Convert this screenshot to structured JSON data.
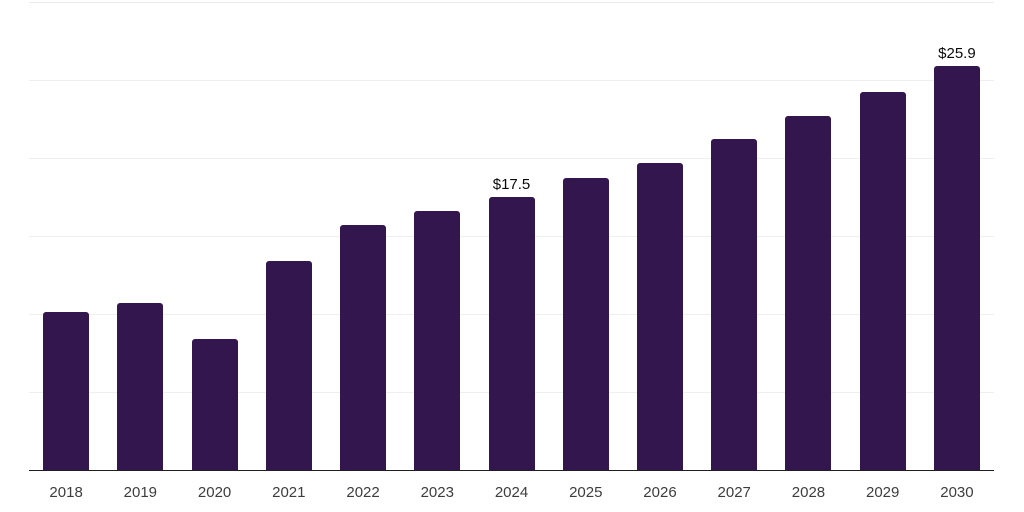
{
  "chart_data": {
    "type": "bar",
    "categories": [
      "2018",
      "2019",
      "2020",
      "2021",
      "2022",
      "2023",
      "2024",
      "2025",
      "2026",
      "2027",
      "2028",
      "2029",
      "2030"
    ],
    "values": [
      10.1,
      10.7,
      8.4,
      13.4,
      15.7,
      16.6,
      17.5,
      18.7,
      19.7,
      21.2,
      22.7,
      24.2,
      25.9
    ],
    "data_labels": [
      "",
      "",
      "",
      "",
      "",
      "",
      "$17.5",
      "",
      "",
      "",
      "",
      "",
      "$25.9"
    ],
    "xlabel": "",
    "ylabel": "",
    "ylim": [
      0,
      30
    ],
    "grid": true,
    "gridline_values": [
      5,
      10,
      15,
      20,
      25,
      30
    ],
    "legend_position": "none"
  },
  "style": {
    "bar_color": "#33164e",
    "gridline_color": "#efefef",
    "top_gridline_color": "#ececec",
    "axis_line_color": "#1f1f1f",
    "tick_label_color": "#3d3d3d",
    "data_label_color": "#0a0a0a",
    "background_color": "#ffffff"
  }
}
